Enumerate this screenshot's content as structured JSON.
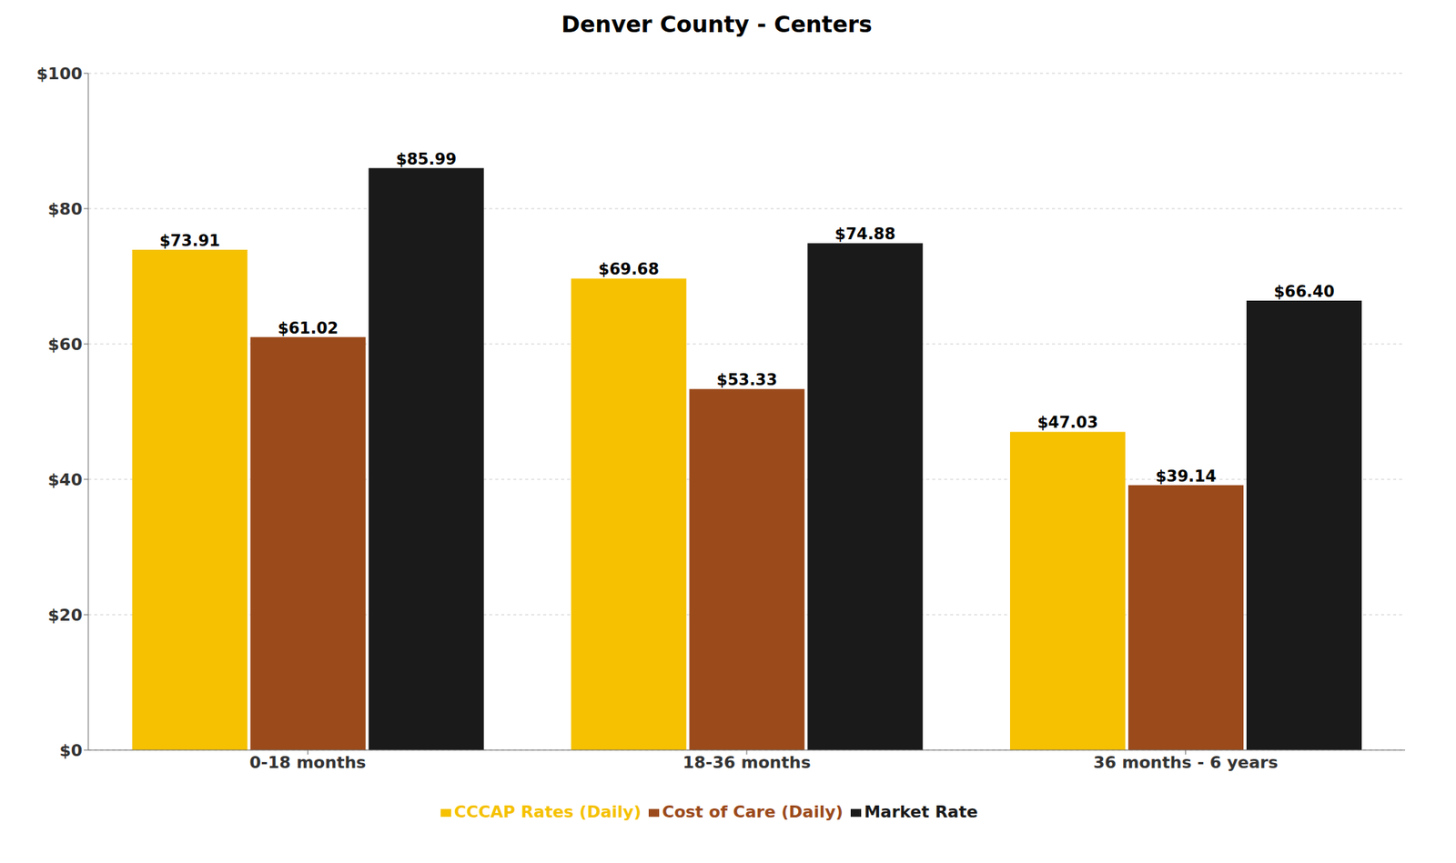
{
  "chart_data": {
    "type": "bar",
    "title": "Denver County - Centers",
    "categories": [
      "0-18 months",
      "18-36 months",
      "36 months - 6 years"
    ],
    "series": [
      {
        "name": "CCCAP Rates (Daily)",
        "color": "#F5C100",
        "values": [
          73.91,
          69.68,
          47.03
        ],
        "value_labels": [
          "$73.91",
          "$69.68",
          "$47.03"
        ]
      },
      {
        "name": "Cost of Care (Daily)",
        "color": "#9B4A1B",
        "values": [
          61.02,
          53.33,
          39.14
        ],
        "value_labels": [
          "$61.02",
          "$53.33",
          "$39.14"
        ]
      },
      {
        "name": "Market Rate",
        "color": "#1A1A1A",
        "values": [
          85.99,
          74.88,
          66.4
        ],
        "value_labels": [
          "$85.99",
          "$74.88",
          "$66.40"
        ]
      }
    ],
    "ylim": [
      0,
      100
    ],
    "yticks": [
      {
        "value": 0,
        "label": "$0"
      },
      {
        "value": 20,
        "label": "$20"
      },
      {
        "value": 40,
        "label": "$40"
      },
      {
        "value": 60,
        "label": "$60"
      },
      {
        "value": 80,
        "label": "$80"
      },
      {
        "value": 100,
        "label": "$100"
      }
    ],
    "grid": true,
    "legend": "bottom",
    "data_labels": true
  }
}
